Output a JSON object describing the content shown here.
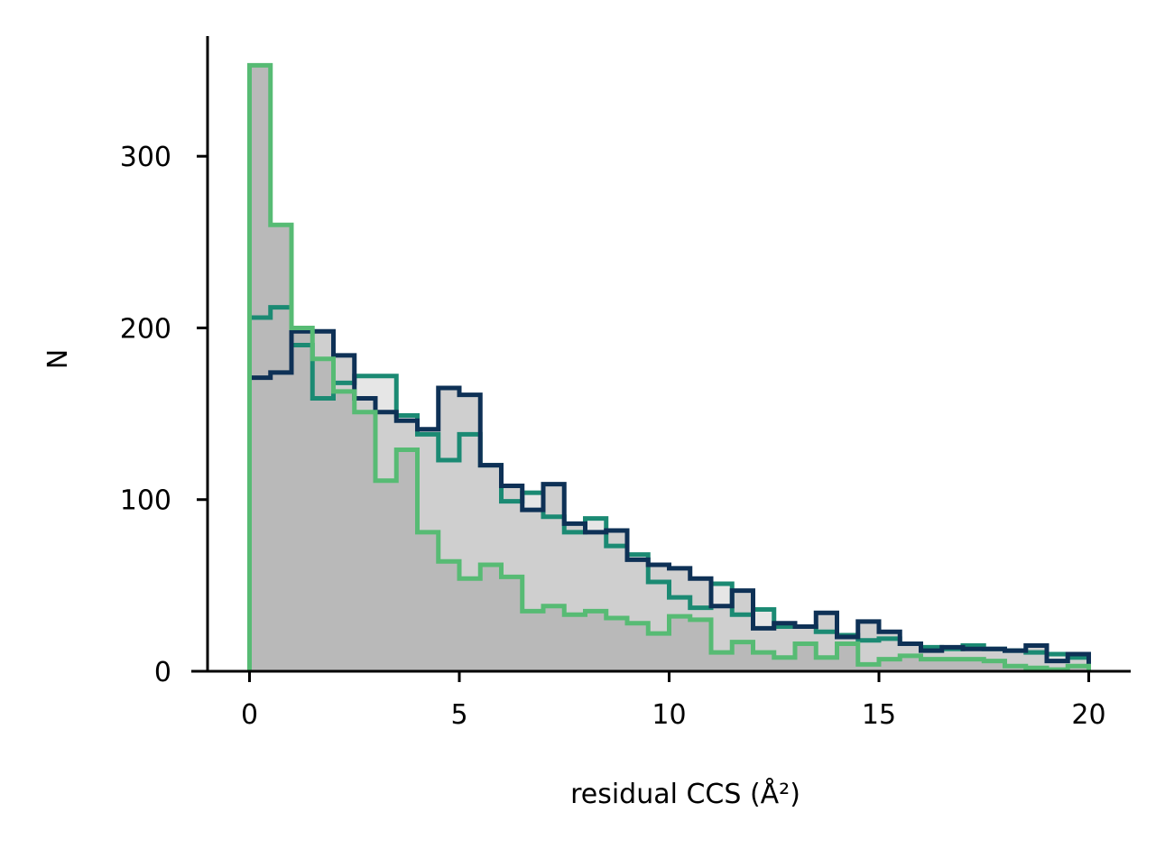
{
  "chart_data": {
    "type": "histogram",
    "xlabel": "residual CCS (Å²)",
    "ylabel": "N",
    "xlim": [
      -1,
      21
    ],
    "ylim": [
      0,
      370
    ],
    "x_ticks": [
      "0",
      "5",
      "10",
      "15",
      "20"
    ],
    "y_ticks": [
      "0",
      "100",
      "200",
      "300"
    ],
    "grid": false,
    "bin_edges": [
      0,
      0.5,
      1,
      1.5,
      2,
      2.5,
      3,
      3.5,
      4,
      4.5,
      5,
      5.5,
      6,
      6.5,
      7,
      7.5,
      8,
      8.5,
      9,
      9.5,
      10,
      10.5,
      11,
      11.5,
      12,
      12.5,
      13,
      13.5,
      14,
      14.5,
      15,
      15.5,
      16,
      16.5,
      17,
      17.5,
      18,
      18.5,
      19,
      19.5,
      20
    ],
    "series": [
      {
        "color": "#1b8a73",
        "fill": "#e6e6e6",
        "values": [
          206,
          212,
          190,
          159,
          168,
          172,
          172,
          149,
          138,
          123,
          138,
          120,
          99,
          104,
          90,
          81,
          89,
          73,
          68,
          52,
          43,
          37,
          51,
          33,
          36,
          26,
          26,
          23,
          21,
          18,
          19,
          16,
          14,
          13,
          15,
          13,
          12,
          11,
          10,
          8
        ]
      },
      {
        "color": "#0e3156",
        "fill": "#cfcfcf",
        "values": [
          171,
          174,
          198,
          198,
          184,
          159,
          151,
          146,
          141,
          165,
          161,
          120,
          108,
          94,
          109,
          86,
          81,
          82,
          65,
          62,
          60,
          54,
          38,
          47,
          25,
          28,
          26,
          34,
          20,
          29,
          23,
          16,
          12,
          14,
          13,
          13,
          12,
          15,
          6,
          10
        ]
      },
      {
        "color": "#57bb74",
        "fill": "#b9b9b9",
        "values": [
          353,
          260,
          200,
          182,
          163,
          151,
          111,
          129,
          81,
          64,
          54,
          62,
          55,
          35,
          38,
          33,
          35,
          31,
          28,
          22,
          32,
          30,
          11,
          17,
          11,
          8,
          16,
          8,
          16,
          4,
          7,
          9,
          7,
          7,
          7,
          6,
          3,
          2,
          1,
          3
        ]
      }
    ]
  }
}
